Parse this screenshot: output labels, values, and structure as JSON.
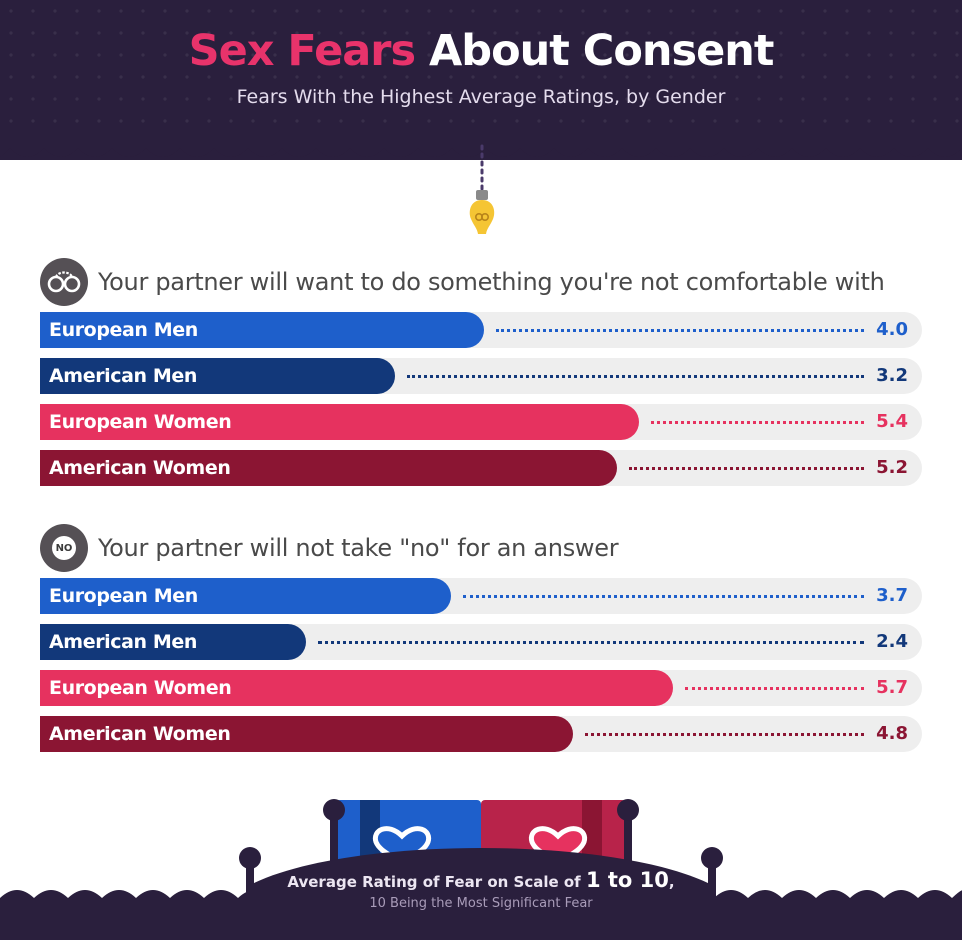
{
  "header": {
    "title_accent": "Sex Fears",
    "title_rest": "About Consent",
    "subtitle": "Fears With the Highest Average Ratings, by Gender"
  },
  "chart_data": [
    {
      "type": "bar",
      "orientation": "horizontal",
      "title": "Your partner will want to do something you're not comfortable with",
      "icon": "handcuffs-icon",
      "categories": [
        "European Men",
        "American Men",
        "European Women",
        "American Women"
      ],
      "values": [
        4.0,
        3.2,
        5.4,
        5.2
      ],
      "value_labels": [
        "4.0",
        "3.2",
        "5.4",
        "5.2"
      ],
      "colors": [
        "#1e5fcb",
        "#12387a",
        "#e6325f",
        "#8b1533"
      ],
      "xlim": [
        0,
        10
      ]
    },
    {
      "type": "bar",
      "orientation": "horizontal",
      "title": "Your partner will not take \"no\" for an answer",
      "icon": "no-icon",
      "icon_text": "NO",
      "categories": [
        "European Men",
        "American Men",
        "European Women",
        "American Women"
      ],
      "values": [
        3.7,
        2.4,
        5.7,
        4.8
      ],
      "value_labels": [
        "3.7",
        "2.4",
        "5.7",
        "4.8"
      ],
      "colors": [
        "#1e5fcb",
        "#12387a",
        "#e6325f",
        "#8b1533"
      ],
      "xlim": [
        0,
        10
      ]
    }
  ],
  "footer": {
    "caption_pre": "Average Rating of Fear on Scale of",
    "caption_big": "1 to 10",
    "caption_post": ",",
    "note": "10 Being the Most Significant Fear"
  },
  "colors": {
    "header_bg": "#2a1f3d",
    "accent": "#e8336b",
    "track": "#eeeeee",
    "bulb": "#f5c534"
  }
}
